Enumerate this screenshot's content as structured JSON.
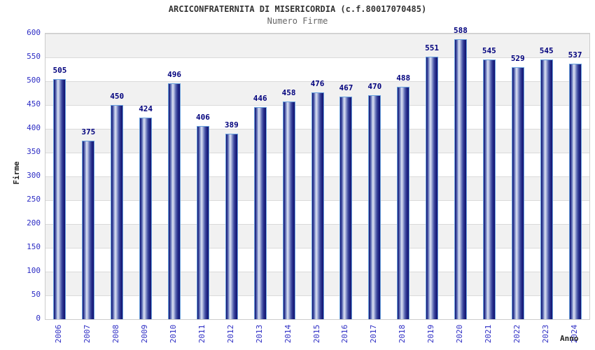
{
  "header": {
    "title": "ARCICONFRATERNITA DI MISERICORDIA (c.f.80017070485)",
    "subtitle": "Numero Firme"
  },
  "chart_data": {
    "type": "bar",
    "title": "ARCICONFRATERNITA DI MISERICORDIA (c.f.80017070485)",
    "subtitle": "Numero Firme",
    "categories": [
      "2006",
      "2007",
      "2008",
      "2009",
      "2010",
      "2011",
      "2012",
      "2013",
      "2014",
      "2015",
      "2016",
      "2017",
      "2018",
      "2019",
      "2020",
      "2021",
      "2022",
      "2023",
      "2024"
    ],
    "values": [
      505,
      375,
      450,
      424,
      496,
      406,
      389,
      446,
      458,
      476,
      467,
      470,
      488,
      551,
      588,
      545,
      529,
      545,
      537
    ],
    "xlabel": "Anno",
    "ylabel": "Firme",
    "ylim": [
      0,
      600
    ],
    "yticks": [
      0,
      50,
      100,
      150,
      200,
      250,
      300,
      350,
      400,
      450,
      500,
      550,
      600
    ],
    "grid": "horizontal alternating bands with gridlines every 50",
    "legend": "none",
    "data_labels": "above each bar"
  },
  "colors": {
    "background": "#ffffff",
    "band_gray": "#f1f1f1",
    "band_white": "#ffffff",
    "gridline": "#dadada",
    "plot_border": "#cccccc",
    "bar_dark": "#10106e",
    "bar_highlight": "#dde2f3",
    "bar_outline": "#6aa2de",
    "tick_label_blue": "#2d2dc4",
    "value_label_navy": "#00007d",
    "title_color": "#333333",
    "subtitle_color": "#666666",
    "axis_title_color": "#222222"
  }
}
